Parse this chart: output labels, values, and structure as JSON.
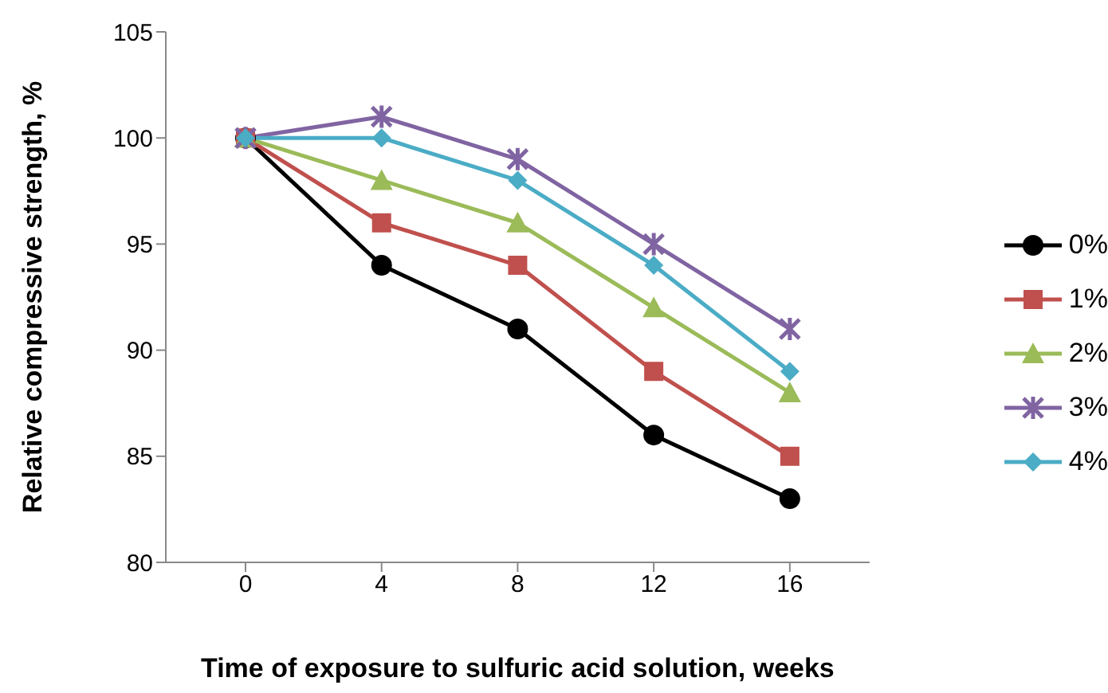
{
  "chart_data": {
    "type": "line",
    "xlabel": "Time of exposure to sulfuric acid solution, weeks",
    "ylabel": "Relative compressive strength, %",
    "categories": [
      "0",
      "4",
      "8",
      "12",
      "16"
    ],
    "series": [
      {
        "name": "0%",
        "color": "#000000",
        "marker": "circle",
        "values": [
          100,
          94,
          91,
          86,
          83
        ]
      },
      {
        "name": "1%",
        "color": "#c0504d",
        "marker": "square",
        "values": [
          100,
          96,
          94,
          89,
          85
        ]
      },
      {
        "name": "2%",
        "color": "#9bbb59",
        "marker": "triangle",
        "values": [
          100,
          98,
          96,
          92,
          88
        ]
      },
      {
        "name": "3%",
        "color": "#8064a2",
        "marker": "cross",
        "values": [
          100,
          101,
          99,
          95,
          91
        ]
      },
      {
        "name": "4%",
        "color": "#4bacc6",
        "marker": "diamond",
        "values": [
          100,
          100,
          98,
          94,
          89
        ]
      }
    ],
    "ylim": [
      80,
      105
    ],
    "yticks": [
      80,
      85,
      90,
      95,
      100,
      105
    ],
    "grid": false,
    "legend": "right",
    "line_style": "solid"
  }
}
